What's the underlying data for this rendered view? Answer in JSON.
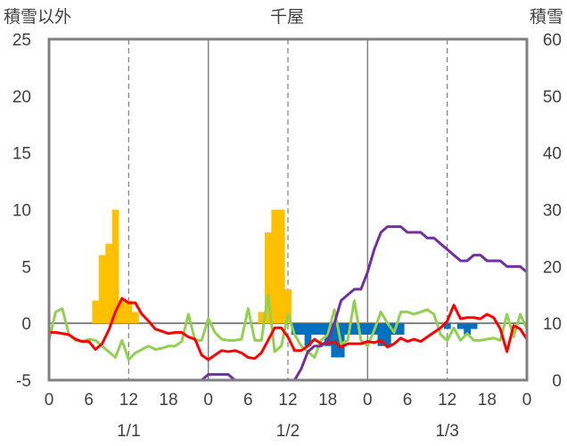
{
  "chart_data": {
    "type": "bar+line",
    "title": "千屋",
    "ylabel_left": "積雪以外",
    "ylabel_right": "積雪",
    "ylim_left": [
      -5,
      25
    ],
    "ylim_right": [
      0,
      60
    ],
    "yticks_left": [
      "-5",
      "0",
      "5",
      "10",
      "15",
      "20",
      "25"
    ],
    "yticks_right": [
      "0",
      "10",
      "20",
      "30",
      "40",
      "50",
      "60"
    ],
    "xlim_hours": [
      0,
      72
    ],
    "xticks": [
      "0",
      "6",
      "12",
      "18",
      "0",
      "6",
      "12",
      "18",
      "0",
      "6",
      "12",
      "18",
      "0"
    ],
    "date_labels": [
      "1/1",
      "1/2",
      "1/3"
    ],
    "colors": {
      "positive_bar": "#FFC000",
      "negative_bar": "#0070C0",
      "red_line": "#FF0000",
      "green_line": "#92D050",
      "purple_line": "#7030A0",
      "frame": "#808080"
    },
    "positive_bars": {
      "x": [
        7,
        8,
        9,
        10,
        11,
        12,
        13,
        32,
        33,
        34,
        35,
        36
      ],
      "values": [
        2,
        6,
        7,
        10,
        2,
        2,
        1,
        1,
        8,
        10,
        10,
        3
      ]
    },
    "negative_bars": {
      "x": [
        37,
        38,
        39,
        40,
        41,
        42,
        43,
        44,
        45,
        46,
        47,
        48,
        49,
        50,
        51,
        52,
        53,
        60,
        62,
        63,
        64
      ],
      "values": [
        -1,
        -1,
        -2,
        -1,
        -1,
        -2,
        -3,
        -3,
        -1,
        -1,
        -1,
        -1,
        -1,
        -2,
        -2,
        -1,
        -1,
        -0.5,
        -0.5,
        -1,
        -0.5
      ]
    },
    "red_series": {
      "x": [
        0,
        1,
        2,
        3,
        4,
        5,
        6,
        7,
        8,
        9,
        10,
        11,
        12,
        13,
        14,
        15,
        16,
        17,
        18,
        19,
        20,
        21,
        22,
        23,
        24,
        25,
        26,
        27,
        28,
        29,
        30,
        31,
        32,
        33,
        34,
        35,
        36,
        37,
        38,
        39,
        40,
        41,
        42,
        43,
        44,
        45,
        46,
        47,
        48,
        49,
        50,
        51,
        52,
        53,
        54,
        55,
        56,
        57,
        58,
        59,
        60,
        61,
        62,
        63,
        64,
        65,
        66,
        67,
        68,
        69,
        70,
        71,
        72
      ],
      "values": [
        -0.8,
        -0.8,
        -0.9,
        -1.0,
        -1.4,
        -1.6,
        -1.6,
        -2.3,
        -1.8,
        -0.6,
        1.0,
        2.2,
        1.8,
        1.8,
        0.8,
        0.2,
        -0.5,
        -0.7,
        -0.9,
        -0.8,
        -0.8,
        -1.2,
        -1.4,
        -2.8,
        -3.2,
        -2.8,
        -2.4,
        -2.5,
        -2.4,
        -2.6,
        -3.0,
        -3.1,
        -2.6,
        -1.5,
        -0.4,
        -0.4,
        -1.2,
        -2.4,
        -2.4,
        -2.0,
        -1.4,
        -1.8,
        -1.8,
        -1.6,
        -2.1,
        -1.8,
        -1.8,
        -1.8,
        -1.6,
        -1.7,
        -1.5,
        -2.1,
        -1.8,
        -1.3,
        -1.6,
        -1.4,
        -1.6,
        -1.2,
        -0.8,
        -0.4,
        0.2,
        1.6,
        0.4,
        0.5,
        0.5,
        0.4,
        0.8,
        0.5,
        -0.5,
        -2.5,
        -0.2,
        -0.5,
        -1.4
      ]
    },
    "green_series": {
      "x": [
        0,
        1,
        2,
        3,
        4,
        5,
        6,
        7,
        8,
        9,
        10,
        11,
        12,
        13,
        14,
        15,
        16,
        17,
        18,
        19,
        20,
        21,
        22,
        23,
        24,
        25,
        26,
        27,
        28,
        29,
        30,
        31,
        32,
        33,
        34,
        35,
        36,
        37,
        38,
        39,
        40,
        41,
        42,
        43,
        44,
        45,
        46,
        47,
        48,
        49,
        50,
        51,
        52,
        53,
        54,
        55,
        56,
        57,
        58,
        59,
        60,
        61,
        62,
        63,
        64,
        65,
        66,
        67,
        68,
        69,
        70,
        71,
        72
      ],
      "values": [
        -1.5,
        1.0,
        1.3,
        -1.0,
        -1.5,
        -1.6,
        -1.4,
        -1.5,
        -2.0,
        -2.5,
        -3.0,
        -1.5,
        -3.2,
        -2.6,
        -2.3,
        -2.0,
        -2.3,
        -2.2,
        -2.0,
        -2.0,
        -1.6,
        0.8,
        -1.5,
        -1.5,
        0.4,
        -0.8,
        -1.4,
        -1.5,
        -1.5,
        -1.4,
        1.3,
        -1.5,
        -1.5,
        2.5,
        -2.5,
        -2.0,
        0.8,
        -1.0,
        -2.0,
        -2.5,
        -3.0,
        -1.5,
        -1.0,
        1.2,
        -1.8,
        -1.5,
        2.0,
        -1.5,
        -2.0,
        -0.6,
        1.0,
        0.0,
        -0.8,
        1.0,
        1.0,
        0.8,
        1.0,
        1.2,
        0.8,
        -1.0,
        -1.5,
        -0.4,
        -1.5,
        -0.9,
        -1.5,
        -1.5,
        -1.4,
        -1.3,
        -1.5,
        0.8,
        -1.2,
        0.8,
        -0.5
      ]
    },
    "purple_series": {
      "x": [
        0,
        1,
        2,
        3,
        4,
        5,
        6,
        7,
        8,
        9,
        10,
        11,
        12,
        13,
        14,
        15,
        16,
        17,
        18,
        19,
        20,
        21,
        22,
        23,
        24,
        25,
        26,
        27,
        28,
        29,
        30,
        31,
        32,
        33,
        34,
        35,
        36,
        37,
        38,
        39,
        40,
        41,
        42,
        43,
        44,
        45,
        46,
        47,
        48,
        49,
        50,
        51,
        52,
        53,
        54,
        55,
        56,
        57,
        58,
        59,
        60,
        61,
        62,
        63,
        64,
        65,
        66,
        67,
        68,
        69,
        70,
        71,
        72
      ],
      "values": [
        0,
        0,
        0,
        0,
        0,
        0,
        0,
        0,
        0,
        0,
        0,
        0,
        0,
        0,
        0,
        0,
        0,
        0,
        0,
        0,
        0,
        0,
        0,
        0,
        1,
        1,
        1,
        1,
        0,
        0,
        0,
        0,
        0,
        0,
        0,
        0,
        0,
        0,
        2,
        5,
        6,
        6,
        7,
        10,
        14,
        15,
        16,
        16,
        19,
        23,
        26,
        27,
        27,
        27,
        26,
        26,
        26,
        25,
        25,
        24,
        23,
        22,
        21,
        21,
        22,
        22,
        21,
        21,
        21,
        20,
        20,
        20,
        19
      ]
    }
  }
}
